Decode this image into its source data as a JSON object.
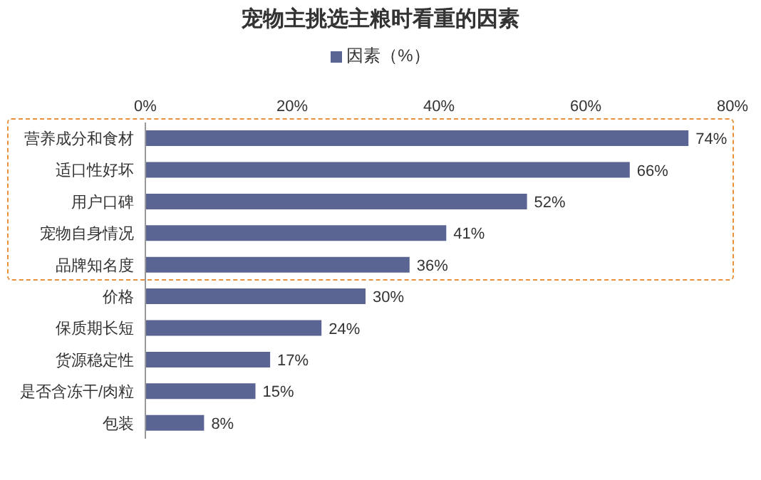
{
  "chart_data": {
    "type": "bar",
    "orientation": "horizontal",
    "title": "宠物主挑选主粮时看重的因素",
    "categories": [
      "营养成分和食材",
      "适口性好坏",
      "用户口碑",
      "宠物自身情况",
      "品牌知名度",
      "价格",
      "保质期长短",
      "货源稳定性",
      "是否含冻干/肉粒",
      "包装"
    ],
    "series": [
      {
        "name": "因素（%）",
        "color": "#5b6594",
        "values": [
          74,
          66,
          52,
          41,
          36,
          30,
          24,
          17,
          15,
          8
        ]
      }
    ],
    "value_labels": [
      "74%",
      "66%",
      "52%",
      "41%",
      "36%",
      "30%",
      "24%",
      "17%",
      "15%",
      "8%"
    ],
    "xlim": [
      0,
      80
    ],
    "xticks": [
      {
        "value": 0,
        "label": "0%"
      },
      {
        "value": 20,
        "label": "20%"
      },
      {
        "value": 40,
        "label": "40%"
      },
      {
        "value": 60,
        "label": "60%"
      },
      {
        "value": 80,
        "label": "80%"
      }
    ],
    "legend": "top"
  }
}
